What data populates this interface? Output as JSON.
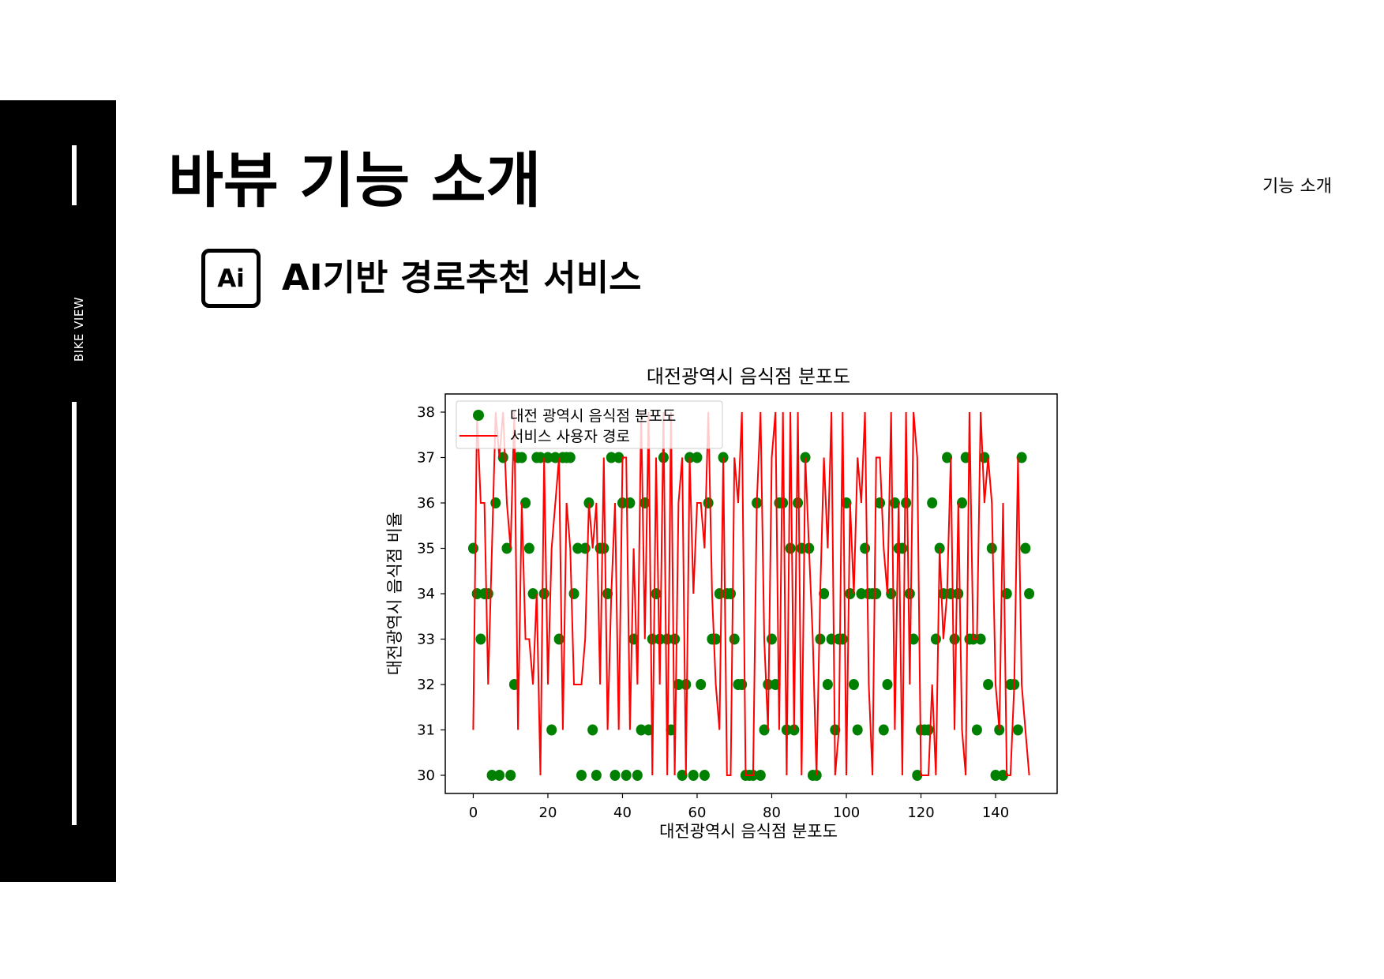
{
  "sidebar": {
    "brand": "BIKE VIEW"
  },
  "header": {
    "title": "바뷰 기능 소개",
    "top_right": "기능 소개"
  },
  "section": {
    "icon_text": "Ai",
    "title": "AI기반 경로추천 서비스"
  },
  "colors": {
    "scatter": "#008000",
    "line": "#ff0000"
  },
  "chart_data": {
    "type": "scatter",
    "title": "대전광역시 음식점 분포도",
    "xlabel": "대전광역시 음식점 분포도",
    "ylabel": "대전광역시 음식점 비율",
    "xlim": [
      -7.5,
      156.5
    ],
    "ylim": [
      29.6,
      38.4
    ],
    "xticks": [
      0,
      20,
      40,
      60,
      80,
      100,
      120,
      140
    ],
    "yticks": [
      30,
      31,
      32,
      33,
      34,
      35,
      36,
      37,
      38
    ],
    "legend_position": "top-left",
    "series": [
      {
        "name": "대전 광역시 음식점 분포도",
        "type": "scatter",
        "color": "#008000",
        "x": [
          0,
          1,
          2,
          3,
          4,
          5,
          6,
          7,
          8,
          9,
          10,
          11,
          12,
          13,
          14,
          15,
          16,
          17,
          18,
          19,
          20,
          21,
          22,
          23,
          24,
          25,
          26,
          27,
          28,
          29,
          30,
          31,
          32,
          33,
          34,
          35,
          36,
          37,
          38,
          39,
          40,
          41,
          42,
          43,
          44,
          45,
          46,
          47,
          48,
          49,
          50,
          51,
          52,
          53,
          54,
          55,
          56,
          57,
          58,
          59,
          60,
          61,
          62,
          63,
          64,
          65,
          66,
          67,
          68,
          69,
          70,
          71,
          72,
          73,
          74,
          75,
          76,
          77,
          78,
          79,
          80,
          81,
          82,
          83,
          84,
          85,
          86,
          87,
          88,
          89,
          90,
          91,
          92,
          93,
          94,
          95,
          96,
          97,
          98,
          99,
          100,
          101,
          102,
          103,
          104,
          105,
          106,
          107,
          108,
          109,
          110,
          111,
          112,
          113,
          114,
          115,
          116,
          117,
          118,
          119,
          120,
          121,
          122,
          123,
          124,
          125,
          126,
          127,
          128,
          129,
          130,
          131,
          132,
          133,
          134,
          135,
          136,
          137,
          138,
          139,
          140,
          141,
          142,
          143,
          144,
          145,
          146,
          147,
          148,
          149
        ],
        "y": [
          35,
          34,
          33,
          34,
          34,
          30,
          36,
          30,
          37,
          35,
          30,
          32,
          37,
          37,
          36,
          35,
          34,
          37,
          37,
          34,
          37,
          31,
          37,
          33,
          37,
          37,
          37,
          34,
          35,
          30,
          35,
          36,
          31,
          30,
          35,
          35,
          34,
          37,
          30,
          37,
          36,
          30,
          36,
          33,
          30,
          31,
          36,
          31,
          33,
          34,
          33,
          37,
          33,
          31,
          33,
          32,
          30,
          32,
          37,
          30,
          37,
          32,
          30,
          36,
          33,
          33,
          34,
          37,
          34,
          34,
          33,
          32,
          32,
          30,
          30,
          30,
          36,
          30,
          31,
          32,
          33,
          32,
          36,
          36,
          31,
          35,
          31,
          36,
          35,
          37,
          35,
          30,
          30,
          33,
          34,
          32,
          33,
          31,
          33,
          33,
          36,
          34,
          32,
          31,
          34,
          35,
          34,
          34,
          34,
          36,
          31,
          32,
          34,
          36,
          35,
          35,
          36,
          34,
          33,
          30,
          31,
          31,
          31,
          36,
          33,
          35,
          34,
          37,
          34,
          33,
          34,
          36,
          37,
          33,
          33,
          31,
          33,
          37,
          32,
          35,
          30,
          31,
          30,
          34,
          32,
          32,
          31,
          37,
          35,
          34
        ],
        "point_count": 150
      },
      {
        "name": "서비스 사용자 경로",
        "type": "line",
        "color": "#ff0000",
        "x": [
          0,
          1,
          2,
          3,
          4,
          5,
          6,
          7,
          8,
          9,
          10,
          11,
          12,
          13,
          14,
          15,
          16,
          17,
          18,
          19,
          20,
          21,
          22,
          23,
          24,
          25,
          26,
          27,
          28,
          29,
          30,
          31,
          32,
          33,
          34,
          35,
          36,
          37,
          38,
          39,
          40,
          41,
          42,
          43,
          44,
          45,
          46,
          47,
          48,
          49,
          50,
          51,
          52,
          53,
          54,
          55,
          56,
          57,
          58,
          59,
          60,
          61,
          62,
          63,
          64,
          65,
          66,
          67,
          68,
          69,
          70,
          71,
          72,
          73,
          74,
          75,
          76,
          77,
          78,
          79,
          80,
          81,
          82,
          83,
          84,
          85,
          86,
          87,
          88,
          89,
          90,
          91,
          92,
          93,
          94,
          95,
          96,
          97,
          98,
          99,
          100,
          101,
          102,
          103,
          104,
          105,
          106,
          107,
          108,
          109,
          110,
          111,
          112,
          113,
          114,
          115,
          116,
          117,
          118,
          119,
          120,
          121,
          122,
          123,
          124,
          125,
          126,
          127,
          128,
          129,
          130,
          131,
          132,
          133,
          134,
          135,
          136,
          137,
          138,
          139,
          140,
          141,
          142,
          143,
          144,
          145,
          146,
          147,
          148,
          149
        ],
        "y": [
          31,
          38,
          36,
          36,
          32,
          35,
          38,
          37,
          38,
          36,
          35,
          38,
          31,
          36,
          33,
          33,
          32,
          34,
          30,
          37,
          32,
          35,
          36,
          37,
          31,
          36,
          35,
          32,
          32,
          32,
          33,
          36,
          35,
          36,
          32,
          37,
          31,
          34,
          36,
          31,
          37,
          37,
          31,
          35,
          32,
          38,
          33,
          38,
          30,
          37,
          32,
          38,
          30,
          38,
          30,
          36,
          37,
          30,
          37,
          34,
          36,
          36,
          35,
          38,
          34,
          32,
          31,
          37,
          30,
          30,
          37,
          36,
          38,
          30,
          30,
          30,
          36,
          38,
          33,
          31,
          37,
          38,
          31,
          38,
          30,
          38,
          31,
          38,
          30,
          37,
          35,
          33,
          30,
          34,
          37,
          35,
          38,
          30,
          31,
          38,
          30,
          36,
          34,
          37,
          36,
          38,
          32,
          30,
          37,
          37,
          35,
          34,
          38,
          31,
          36,
          30,
          38,
          32,
          38,
          37,
          30,
          30,
          30,
          32,
          30,
          35,
          33,
          34,
          37,
          31,
          36,
          31,
          30,
          38,
          33,
          33,
          38,
          36,
          37,
          36,
          32,
          31,
          36,
          30,
          30,
          32,
          37,
          32,
          31,
          30
        ],
        "approximate": true
      }
    ]
  }
}
